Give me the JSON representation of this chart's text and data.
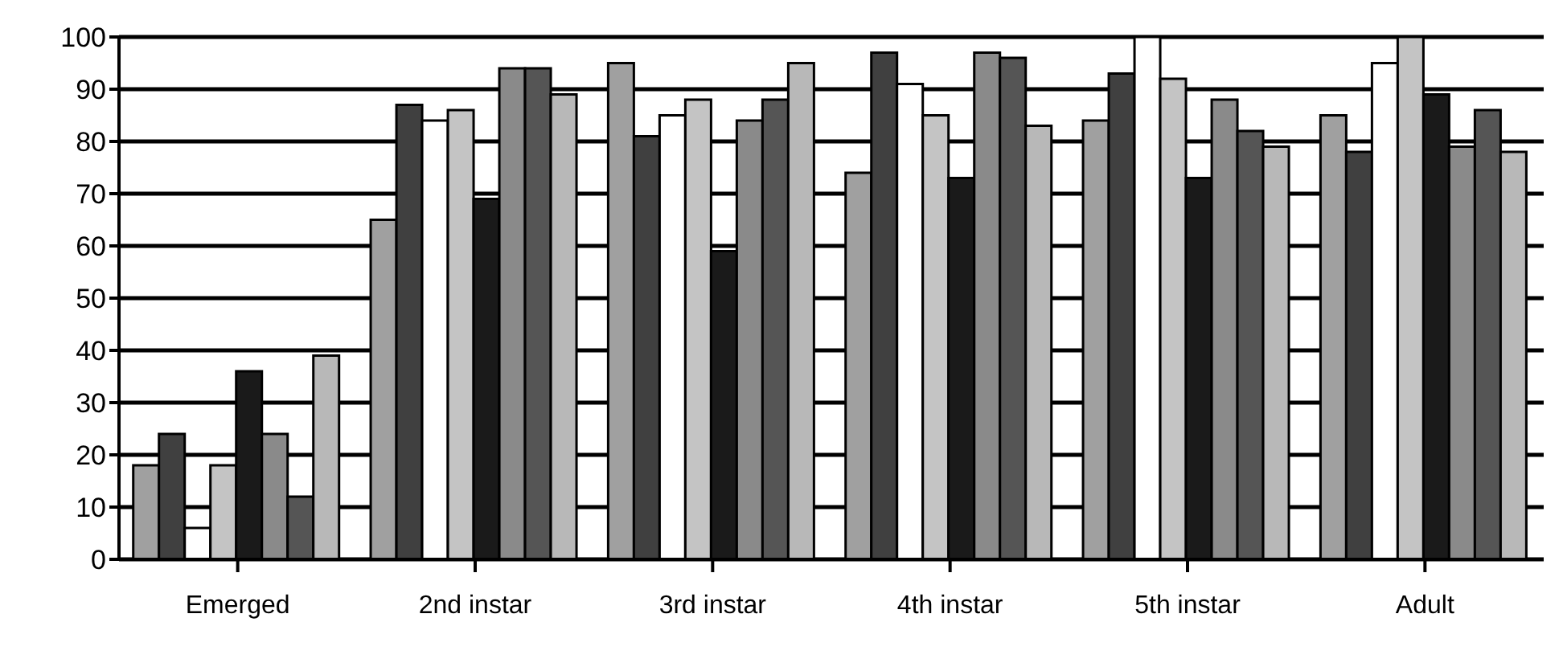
{
  "chart_data": {
    "type": "bar",
    "categories": [
      "Emerged",
      "2nd  instar",
      "3rd  instar",
      "4th  instar",
      "5th  instar",
      "Adult"
    ],
    "series": [
      {
        "color": "#a0a0a0",
        "values": [
          18,
          65,
          95,
          74,
          84,
          85
        ]
      },
      {
        "color": "#404040",
        "values": [
          24,
          87,
          81,
          97,
          93,
          78
        ]
      },
      {
        "color": "#ffffff",
        "values": [
          6,
          84,
          85,
          91,
          100,
          95
        ]
      },
      {
        "color": "#c4c4c4",
        "values": [
          18,
          86,
          88,
          85,
          92,
          100
        ]
      },
      {
        "color": "#1a1a1a",
        "values": [
          36,
          69,
          59,
          73,
          73,
          89
        ]
      },
      {
        "color": "#8a8a8a",
        "values": [
          24,
          94,
          84,
          97,
          88,
          79
        ]
      },
      {
        "color": "#555555",
        "values": [
          12,
          94,
          88,
          96,
          82,
          86
        ]
      },
      {
        "color": "#b8b8b8",
        "values": [
          39,
          89,
          95,
          83,
          79,
          78
        ]
      }
    ],
    "ylim": [
      0,
      100
    ],
    "yticks": [
      0,
      10,
      20,
      30,
      40,
      50,
      60,
      70,
      80,
      90,
      100
    ],
    "grid": "y",
    "legend": false
  }
}
